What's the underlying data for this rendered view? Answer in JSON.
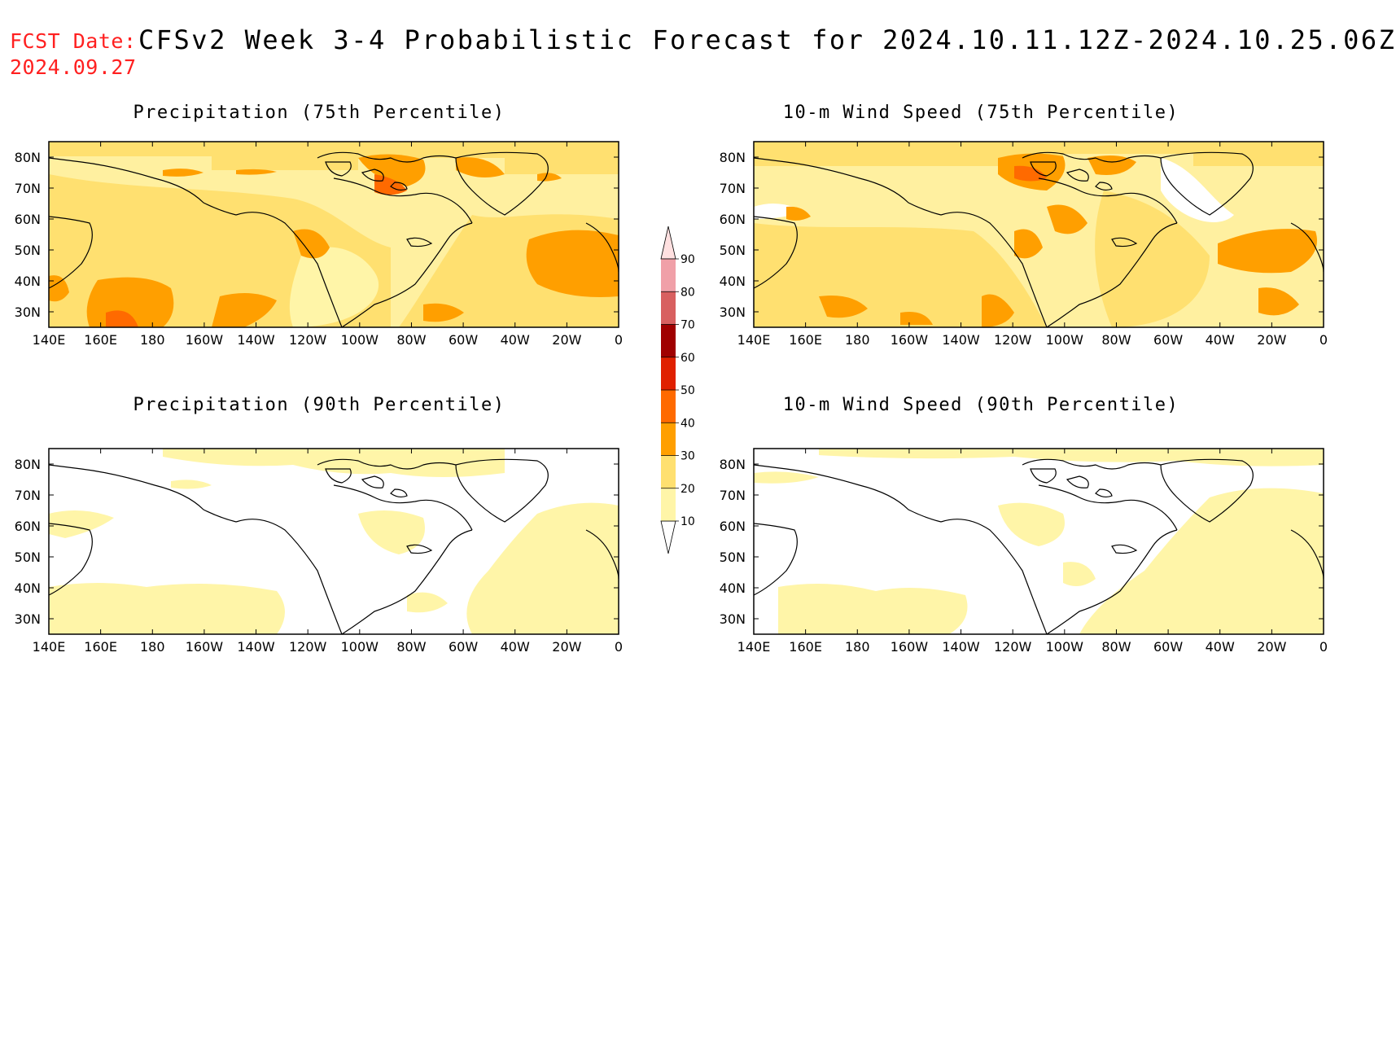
{
  "header": {
    "fcst_label": "FCST Date:",
    "fcst_date": "2024.09.27",
    "title": "CFSv2 Week 3-4 Probabilistic Forecast for 2024.10.11.12Z-2024.10.25.06Z"
  },
  "panels": [
    {
      "title": "Precipitation (75th Percentile)"
    },
    {
      "title": "10-m Wind Speed (75th Percentile)"
    },
    {
      "title": "Precipitation (90th Percentile)"
    },
    {
      "title": "10-m Wind Speed (90th Percentile)"
    }
  ],
  "lat_ticks": [
    "80N",
    "70N",
    "60N",
    "50N",
    "40N",
    "30N"
  ],
  "lon_ticks": [
    "140E",
    "160E",
    "180",
    "160W",
    "140W",
    "120W",
    "100W",
    "80W",
    "60W",
    "40W",
    "20W",
    "0"
  ],
  "colorbar": {
    "levels": [
      "10",
      "20",
      "30",
      "40",
      "50",
      "60",
      "70",
      "80",
      "90"
    ],
    "colors": [
      "#ffffff",
      "#fff5a8",
      "#ffe070",
      "#ff9f00",
      "#ff6a00",
      "#e02000",
      "#a00000",
      "#d86060",
      "#f0a0a8",
      "#ffe0e0"
    ]
  }
}
